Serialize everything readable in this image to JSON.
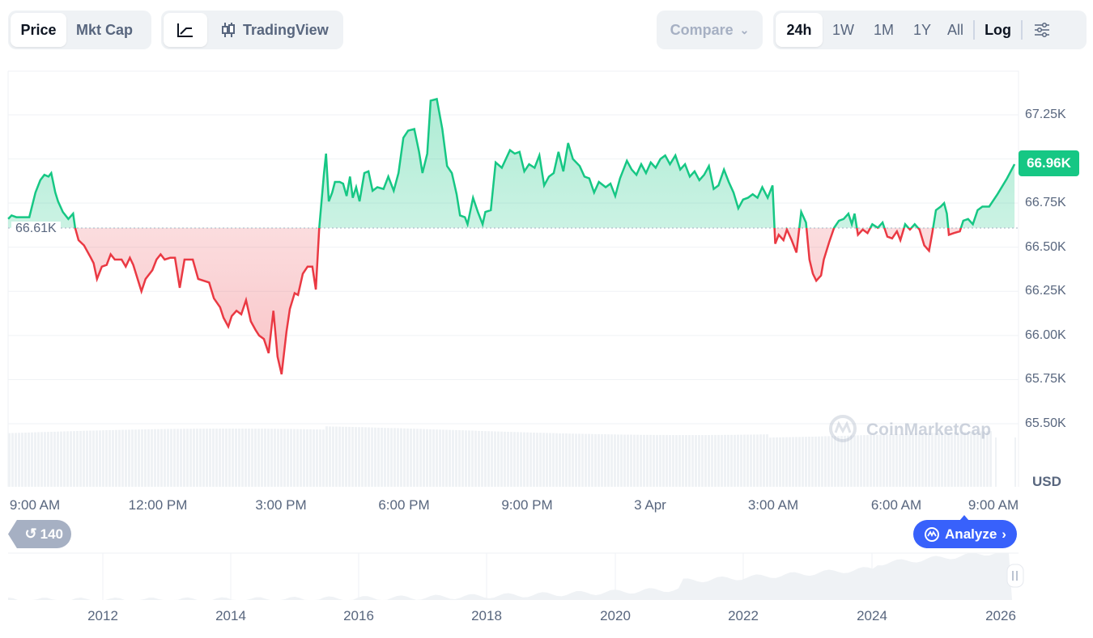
{
  "toolbar": {
    "metric_tabs": [
      {
        "label": "Price",
        "active": true
      },
      {
        "label": "Mkt Cap",
        "active": false
      }
    ],
    "chart_type": {
      "line_icon": "line-chart-icon",
      "tradingview_label": "TradingView",
      "tradingview_icon": "candlestick-icon"
    },
    "compare_label": "Compare",
    "ranges": [
      {
        "label": "24h",
        "active": true
      },
      {
        "label": "1W"
      },
      {
        "label": "1M"
      },
      {
        "label": "1Y"
      },
      {
        "label": "All"
      }
    ],
    "log_label": "Log",
    "settings_icon": "sliders-icon"
  },
  "colors": {
    "up": "#16c784",
    "down": "#ea3943",
    "accent": "#3861fb"
  },
  "chart_data": {
    "type": "line",
    "currency": "USD",
    "baseline": 66.61,
    "baseline_label": "66.61K",
    "current_label": "66.96K",
    "y_ticks": [
      "67.25K",
      "66.75K",
      "66.50K",
      "66.25K",
      "66.00K",
      "65.75K",
      "65.50K"
    ],
    "y_tick_values": [
      67.25,
      66.75,
      66.5,
      66.25,
      66.0,
      65.75,
      65.5
    ],
    "x_ticks": [
      "9:00 AM",
      "12:00 PM",
      "3:00 PM",
      "6:00 PM",
      "9:00 PM",
      "3 Apr",
      "3:00 AM",
      "6:00 AM",
      "9:00 AM"
    ],
    "x_unit": "minutes since 9:00 AM",
    "points": [
      [
        -39,
        66.66
      ],
      [
        -34,
        66.68
      ],
      [
        -27,
        66.67
      ],
      [
        -18,
        66.67
      ],
      [
        -8,
        66.67
      ],
      [
        1,
        66.81
      ],
      [
        8,
        66.88
      ],
      [
        14,
        66.91
      ],
      [
        20,
        66.9
      ],
      [
        24,
        66.92
      ],
      [
        30,
        66.81
      ],
      [
        34,
        66.76
      ],
      [
        41,
        66.7
      ],
      [
        49,
        66.66
      ],
      [
        56,
        66.69
      ],
      [
        59,
        66.61
      ],
      [
        64,
        66.54
      ],
      [
        72,
        66.51
      ],
      [
        82,
        66.44
      ],
      [
        86,
        66.41
      ],
      [
        91,
        66.32
      ],
      [
        98,
        66.39
      ],
      [
        105,
        66.4
      ],
      [
        111,
        66.46
      ],
      [
        117,
        66.43
      ],
      [
        127,
        66.43
      ],
      [
        133,
        66.39
      ],
      [
        139,
        66.44
      ],
      [
        144,
        66.4
      ],
      [
        156,
        66.25
      ],
      [
        162,
        66.32
      ],
      [
        172,
        66.37
      ],
      [
        178,
        66.43
      ],
      [
        184,
        66.46
      ],
      [
        190,
        66.43
      ],
      [
        198,
        66.44
      ],
      [
        205,
        66.44
      ],
      [
        212,
        66.27
      ],
      [
        219,
        66.43
      ],
      [
        231,
        66.43
      ],
      [
        239,
        66.32
      ],
      [
        247,
        66.31
      ],
      [
        255,
        66.3
      ],
      [
        262,
        66.21
      ],
      [
        271,
        66.16
      ],
      [
        276,
        66.1
      ],
      [
        283,
        66.05
      ],
      [
        288,
        66.11
      ],
      [
        295,
        66.14
      ],
      [
        302,
        66.12
      ],
      [
        309,
        66.2
      ],
      [
        316,
        66.08
      ],
      [
        323,
        66.03
      ],
      [
        328,
        66.0
      ],
      [
        335,
        65.98
      ],
      [
        342,
        65.9
      ],
      [
        349,
        66.14
      ],
      [
        355,
        65.88
      ],
      [
        361,
        65.78
      ],
      [
        368,
        66.02
      ],
      [
        373,
        66.15
      ],
      [
        380,
        66.24
      ],
      [
        385,
        66.23
      ],
      [
        392,
        66.35
      ],
      [
        399,
        66.39
      ],
      [
        406,
        66.39
      ],
      [
        411,
        66.26
      ],
      [
        416,
        66.61
      ],
      [
        423,
        66.92
      ],
      [
        426,
        67.03
      ],
      [
        430,
        66.76
      ],
      [
        435,
        66.81
      ],
      [
        439,
        66.87
      ],
      [
        446,
        66.87
      ],
      [
        451,
        66.86
      ],
      [
        456,
        66.79
      ],
      [
        461,
        66.9
      ],
      [
        465,
        66.78
      ],
      [
        470,
        66.84
      ],
      [
        475,
        66.76
      ],
      [
        482,
        66.92
      ],
      [
        488,
        66.93
      ],
      [
        494,
        66.82
      ],
      [
        501,
        66.84
      ],
      [
        510,
        66.83
      ],
      [
        517,
        66.9
      ],
      [
        525,
        66.82
      ],
      [
        532,
        66.92
      ],
      [
        539,
        67.12
      ],
      [
        546,
        67.16
      ],
      [
        555,
        67.17
      ],
      [
        562,
        67.04
      ],
      [
        567,
        66.92
      ],
      [
        574,
        67.03
      ],
      [
        579,
        67.33
      ],
      [
        588,
        67.34
      ],
      [
        596,
        67.17
      ],
      [
        603,
        66.96
      ],
      [
        610,
        66.92
      ],
      [
        617,
        66.8
      ],
      [
        622,
        66.68
      ],
      [
        629,
        66.67
      ],
      [
        633,
        66.63
      ],
      [
        641,
        66.78
      ],
      [
        648,
        66.7
      ],
      [
        655,
        66.63
      ],
      [
        659,
        66.7
      ],
      [
        667,
        66.71
      ],
      [
        674,
        66.98
      ],
      [
        683,
        66.95
      ],
      [
        695,
        67.05
      ],
      [
        702,
        67.03
      ],
      [
        709,
        67.04
      ],
      [
        716,
        66.93
      ],
      [
        723,
        66.97
      ],
      [
        731,
        66.95
      ],
      [
        738,
        67.02
      ],
      [
        745,
        66.85
      ],
      [
        752,
        66.9
      ],
      [
        759,
        66.92
      ],
      [
        766,
        67.04
      ],
      [
        773,
        66.93
      ],
      [
        780,
        67.09
      ],
      [
        787,
        67.0
      ],
      [
        797,
        66.96
      ],
      [
        804,
        66.9
      ],
      [
        811,
        66.89
      ],
      [
        818,
        66.81
      ],
      [
        825,
        66.87
      ],
      [
        835,
        66.84
      ],
      [
        842,
        66.86
      ],
      [
        849,
        66.79
      ],
      [
        856,
        66.89
      ],
      [
        866,
        66.99
      ],
      [
        873,
        66.94
      ],
      [
        880,
        66.91
      ],
      [
        887,
        66.97
      ],
      [
        894,
        66.92
      ],
      [
        901,
        66.98
      ],
      [
        908,
        66.95
      ],
      [
        915,
        67.0
      ],
      [
        922,
        67.02
      ],
      [
        929,
        66.97
      ],
      [
        937,
        67.02
      ],
      [
        944,
        66.94
      ],
      [
        951,
        66.97
      ],
      [
        958,
        66.9
      ],
      [
        965,
        66.93
      ],
      [
        972,
        66.88
      ],
      [
        979,
        66.91
      ],
      [
        986,
        66.96
      ],
      [
        993,
        66.83
      ],
      [
        1000,
        66.85
      ],
      [
        1008,
        66.94
      ],
      [
        1015,
        66.87
      ],
      [
        1022,
        66.81
      ],
      [
        1029,
        66.72
      ],
      [
        1036,
        66.77
      ],
      [
        1043,
        66.78
      ],
      [
        1050,
        66.8
      ],
      [
        1057,
        66.78
      ],
      [
        1064,
        66.84
      ],
      [
        1072,
        66.78
      ],
      [
        1079,
        66.85
      ],
      [
        1083,
        66.52
      ],
      [
        1088,
        66.57
      ],
      [
        1095,
        66.54
      ],
      [
        1100,
        66.6
      ],
      [
        1107,
        66.54
      ],
      [
        1114,
        66.47
      ],
      [
        1121,
        66.7
      ],
      [
        1128,
        66.64
      ],
      [
        1133,
        66.43
      ],
      [
        1138,
        66.35
      ],
      [
        1143,
        66.31
      ],
      [
        1150,
        66.34
      ],
      [
        1154,
        66.43
      ],
      [
        1162,
        66.53
      ],
      [
        1169,
        66.61
      ],
      [
        1176,
        66.65
      ],
      [
        1183,
        66.66
      ],
      [
        1190,
        66.69
      ],
      [
        1195,
        66.63
      ],
      [
        1199,
        66.69
      ],
      [
        1204,
        66.57
      ],
      [
        1211,
        66.6
      ],
      [
        1218,
        66.58
      ],
      [
        1225,
        66.63
      ],
      [
        1233,
        66.61
      ],
      [
        1240,
        66.64
      ],
      [
        1247,
        66.56
      ],
      [
        1254,
        66.55
      ],
      [
        1261,
        66.59
      ],
      [
        1266,
        66.54
      ],
      [
        1273,
        66.63
      ],
      [
        1280,
        66.6
      ],
      [
        1287,
        66.63
      ],
      [
        1294,
        66.6
      ],
      [
        1301,
        66.51
      ],
      [
        1308,
        66.48
      ],
      [
        1313,
        66.59
      ],
      [
        1318,
        66.71
      ],
      [
        1325,
        66.73
      ],
      [
        1330,
        66.75
      ],
      [
        1334,
        66.69
      ],
      [
        1337,
        66.57
      ],
      [
        1344,
        66.58
      ],
      [
        1353,
        66.59
      ],
      [
        1358,
        66.65
      ],
      [
        1365,
        66.66
      ],
      [
        1372,
        66.63
      ],
      [
        1379,
        66.71
      ],
      [
        1386,
        66.73
      ],
      [
        1396,
        66.73
      ],
      [
        1408,
        66.8
      ],
      [
        1422,
        66.89
      ],
      [
        1433,
        66.97
      ]
    ]
  },
  "watermark": "CoinMarketCap",
  "history_badge": "140",
  "analyze_label": "Analyze",
  "navigator": {
    "x_ticks": [
      "2012",
      "2014",
      "2016",
      "2018",
      "2020",
      "2022",
      "2024",
      "2026"
    ]
  }
}
